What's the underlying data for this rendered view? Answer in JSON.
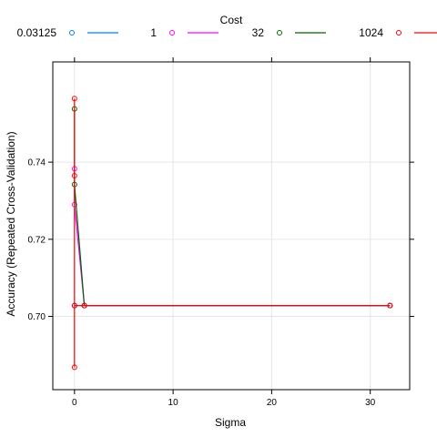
{
  "chart_data": {
    "type": "line",
    "xlabel": "Sigma",
    "ylabel": "Accuracy (Repeated Cross-Validation)",
    "legend_title": "Cost",
    "legend_position": "top",
    "grid": true,
    "xlim": [
      -2.2,
      34
    ],
    "ylim": [
      0.681,
      0.766
    ],
    "x_ticks": [
      0,
      10,
      20,
      30
    ],
    "y_ticks": [
      0.7,
      0.72,
      0.74
    ],
    "y_tick_labels": [
      "0.70",
      "0.72",
      "0.74"
    ],
    "series": [
      {
        "name": "0.03125",
        "color": "#0080ff",
        "x": [
          0,
          0,
          1,
          32
        ],
        "y": [
          0.7028,
          0.7028,
          0.7028,
          0.7028
        ]
      },
      {
        "name": "1",
        "color": "#ff00ff",
        "x": [
          0,
          0,
          1,
          32
        ],
        "y": [
          0.7383,
          0.729,
          0.7028,
          0.7028
        ]
      },
      {
        "name": "32",
        "color": "#006400",
        "x": [
          0,
          0,
          1,
          32
        ],
        "y": [
          0.7538,
          0.7342,
          0.7028,
          0.7028
        ]
      },
      {
        "name": "1024",
        "color": "#ff0000",
        "x": [
          0,
          0,
          0,
          0,
          1,
          32
        ],
        "y": [
          0.7565,
          0.6868,
          0.7365,
          0.7028,
          0.7028,
          0.7028
        ]
      }
    ]
  }
}
